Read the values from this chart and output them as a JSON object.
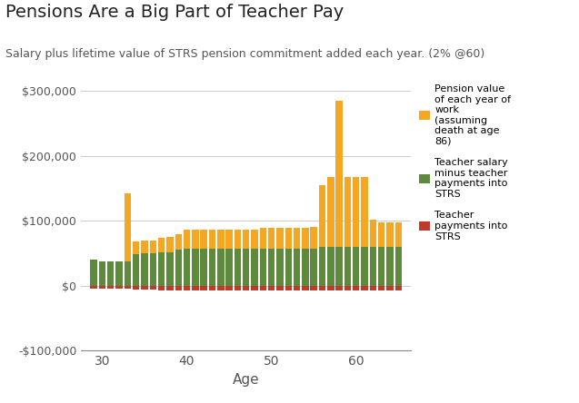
{
  "title": "Pensions Are a Big Part of Teacher Pay",
  "subtitle": "Salary plus lifetime value of STRS pension commitment added each year. (2% @60)",
  "xlabel": "Age",
  "ages": [
    29,
    30,
    31,
    32,
    33,
    34,
    35,
    36,
    37,
    38,
    39,
    40,
    41,
    42,
    43,
    44,
    45,
    46,
    47,
    48,
    49,
    50,
    51,
    52,
    53,
    54,
    55,
    56,
    57,
    58,
    59,
    60,
    61,
    62,
    63,
    64,
    65
  ],
  "pension_above": [
    0,
    0,
    0,
    0,
    105000,
    20000,
    20000,
    20000,
    22000,
    23000,
    25000,
    30000,
    30000,
    30000,
    30000,
    30000,
    30000,
    30000,
    30000,
    30000,
    32000,
    32000,
    32000,
    32000,
    32000,
    32000,
    33000,
    95000,
    108000,
    225000,
    108000,
    108000,
    108000,
    42000,
    38000,
    38000,
    38000
  ],
  "salary_net": [
    40000,
    38000,
    38000,
    38000,
    38000,
    48000,
    50000,
    50000,
    52000,
    52000,
    55000,
    57000,
    57000,
    57000,
    57000,
    57000,
    57000,
    57000,
    57000,
    57000,
    57000,
    57000,
    57000,
    57000,
    57000,
    57000,
    57000,
    60000,
    60000,
    60000,
    60000,
    60000,
    60000,
    60000,
    60000,
    60000,
    60000
  ],
  "teacher_payments": [
    -5000,
    -4800,
    -4800,
    -4800,
    -4800,
    -6000,
    -6200,
    -6400,
    -6600,
    -6800,
    -7000,
    -7200,
    -7200,
    -7200,
    -7200,
    -7200,
    -7200,
    -7200,
    -7200,
    -7200,
    -7200,
    -7200,
    -7200,
    -7200,
    -7200,
    -7200,
    -7200,
    -7500,
    -7500,
    -7500,
    -7500,
    -7500,
    -7500,
    -7500,
    -7500,
    -7500,
    -7500
  ],
  "pension_color": "#F5A623",
  "salary_color": "#5D8A3C",
  "payments_color": "#C0392B",
  "ylim_min": -100000,
  "ylim_max": 310000,
  "yticks": [
    0,
    100000,
    200000,
    300000
  ],
  "xticks": [
    30,
    40,
    50,
    60
  ],
  "background_color": "#FFFFFF",
  "grid_color": "#CCCCCC",
  "title_fontsize": 14,
  "subtitle_fontsize": 9,
  "xlabel_fontsize": 11,
  "legend_fontsize": 8
}
